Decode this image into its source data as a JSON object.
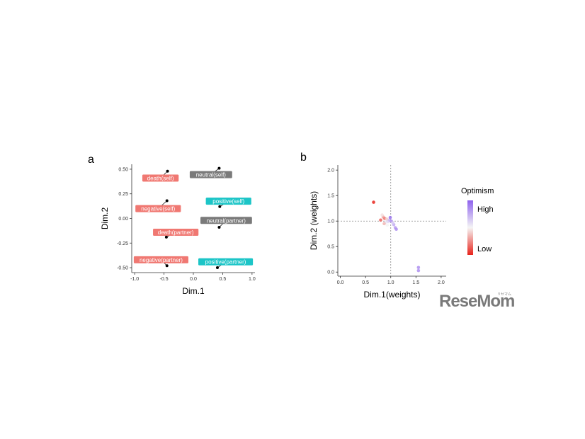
{
  "watermark": {
    "text": "ReseMom",
    "small": "リセマム"
  },
  "panels": {
    "a": "a",
    "b": "b"
  },
  "chart_data": [
    {
      "type": "scatter",
      "panel": "a",
      "xlabel": "Dim.1",
      "ylabel": "Dim.2",
      "xlim": [
        -1.05,
        1.05
      ],
      "ylim": [
        -0.55,
        0.55
      ],
      "xticks": [
        "-1.0",
        "-0.5",
        "0.0",
        "0.5",
        "1.0"
      ],
      "xtick_values": [
        -1.0,
        -0.5,
        0.0,
        0.5,
        1.0
      ],
      "yticks": [
        "0.50",
        "0.25",
        "0.00",
        "-0.25",
        "-0.50"
      ],
      "ytick_values": [
        0.5,
        0.25,
        0.0,
        -0.25,
        -0.5
      ],
      "grid": false,
      "points": [
        {
          "label": "death(self)",
          "x": -0.44,
          "y": 0.48,
          "lx": -0.56,
          "ly": 0.41,
          "color": "#f07872"
        },
        {
          "label": "neutral(self)",
          "x": 0.44,
          "y": 0.51,
          "lx": 0.3,
          "ly": 0.445,
          "color": "#7a7a7a"
        },
        {
          "label": "negative(self)",
          "x": -0.45,
          "y": 0.18,
          "lx": -0.6,
          "ly": 0.1,
          "color": "#f07872"
        },
        {
          "label": "positive(self)",
          "x": 0.45,
          "y": 0.12,
          "lx": 0.6,
          "ly": 0.175,
          "color": "#1cc5c7"
        },
        {
          "label": "neutral(partner)",
          "x": 0.44,
          "y": -0.09,
          "lx": 0.56,
          "ly": -0.02,
          "color": "#7a7a7a"
        },
        {
          "label": "death(partner)",
          "x": -0.46,
          "y": -0.19,
          "lx": -0.3,
          "ly": -0.14,
          "color": "#f07872"
        },
        {
          "label": "negative(partner)",
          "x": -0.45,
          "y": -0.48,
          "lx": -0.55,
          "ly": -0.42,
          "color": "#f07872"
        },
        {
          "label": "positive(partner)",
          "x": 0.41,
          "y": -0.5,
          "lx": 0.55,
          "ly": -0.44,
          "color": "#1cc5c7"
        }
      ]
    },
    {
      "type": "scatter",
      "panel": "b",
      "xlabel": "Dim.1(weights)",
      "ylabel": "Dim.2 (weights)",
      "xlim": [
        -0.05,
        2.1
      ],
      "ylim": [
        -0.08,
        2.1
      ],
      "xticks": [
        "0.0",
        "0.5",
        "1.0",
        "1.5",
        "2.0"
      ],
      "xtick_values": [
        0.0,
        0.5,
        1.0,
        1.5,
        2.0
      ],
      "yticks": [
        "2.0",
        "1.5",
        "1.0",
        "0.5",
        "0.0"
      ],
      "ytick_values": [
        2.0,
        1.5,
        1.0,
        0.5,
        0.0
      ],
      "reference_lines": {
        "x": 1.0,
        "y": 1.0
      },
      "grid": false,
      "legend": {
        "title": "Optimism",
        "high": "High",
        "low": "Low",
        "placement": "right",
        "color_high": "#8f63ee",
        "color_mid": "#f5f5f5",
        "color_low": "#e8241c"
      },
      "points": [
        {
          "x": 0.66,
          "y": 1.37,
          "o": 0.0
        },
        {
          "x": 0.8,
          "y": 1.02,
          "o": 0.15
        },
        {
          "x": 0.85,
          "y": 1.08,
          "o": 0.3
        },
        {
          "x": 0.83,
          "y": 1.12,
          "o": 0.45
        },
        {
          "x": 0.88,
          "y": 1.05,
          "o": 0.2
        },
        {
          "x": 0.9,
          "y": 0.98,
          "o": 0.55
        },
        {
          "x": 0.92,
          "y": 1.04,
          "o": 0.4
        },
        {
          "x": 0.95,
          "y": 0.99,
          "o": 0.6
        },
        {
          "x": 0.97,
          "y": 1.02,
          "o": 0.7
        },
        {
          "x": 0.93,
          "y": 0.92,
          "o": 0.5
        },
        {
          "x": 0.99,
          "y": 1.07,
          "o": 0.95
        },
        {
          "x": 1.01,
          "y": 1.0,
          "o": 0.85
        },
        {
          "x": 1.06,
          "y": 0.93,
          "o": 0.75
        },
        {
          "x": 1.09,
          "y": 0.87,
          "o": 0.8
        },
        {
          "x": 1.11,
          "y": 0.84,
          "o": 0.85
        },
        {
          "x": 1.04,
          "y": 0.97,
          "o": 0.65
        },
        {
          "x": 0.87,
          "y": 0.95,
          "o": 0.35
        },
        {
          "x": 1.55,
          "y": 0.09,
          "o": 0.85
        },
        {
          "x": 1.55,
          "y": 0.03,
          "o": 0.85
        }
      ]
    }
  ]
}
